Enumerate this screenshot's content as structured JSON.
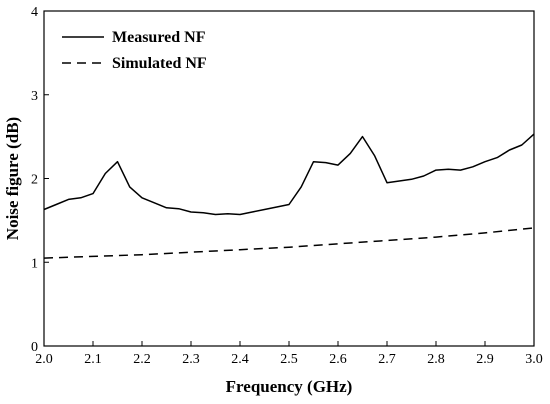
{
  "chart_data": {
    "type": "line",
    "xlabel": "Frequency (GHz)",
    "ylabel": "Noise figure (dB)",
    "xlim": [
      2.0,
      3.0
    ],
    "ylim": [
      0,
      4
    ],
    "xticks": [
      "2.0",
      "2.1",
      "2.2",
      "2.3",
      "2.4",
      "2.5",
      "2.6",
      "2.7",
      "2.8",
      "2.9",
      "3.0"
    ],
    "yticks": [
      "0",
      "1",
      "2",
      "3",
      "4"
    ],
    "grid": false,
    "legend_position": "top-left",
    "series": [
      {
        "name": "Measured NF",
        "style": "solid",
        "color": "#000000",
        "x": [
          2.0,
          2.025,
          2.05,
          2.075,
          2.1,
          2.125,
          2.15,
          2.175,
          2.2,
          2.225,
          2.25,
          2.275,
          2.3,
          2.325,
          2.35,
          2.375,
          2.4,
          2.425,
          2.45,
          2.475,
          2.5,
          2.525,
          2.55,
          2.575,
          2.6,
          2.625,
          2.65,
          2.675,
          2.7,
          2.725,
          2.75,
          2.775,
          2.8,
          2.825,
          2.85,
          2.875,
          2.9,
          2.925,
          2.95,
          2.975,
          3.0
        ],
        "y": [
          1.63,
          1.69,
          1.75,
          1.77,
          1.82,
          2.06,
          2.2,
          1.9,
          1.77,
          1.71,
          1.65,
          1.64,
          1.6,
          1.59,
          1.57,
          1.58,
          1.57,
          1.6,
          1.63,
          1.66,
          1.69,
          1.9,
          2.2,
          2.19,
          2.16,
          2.3,
          2.5,
          2.27,
          1.95,
          1.97,
          1.99,
          2.03,
          2.1,
          2.11,
          2.1,
          2.14,
          2.2,
          2.25,
          2.34,
          2.4,
          2.53
        ]
      },
      {
        "name": "Simulated NF",
        "style": "dashed",
        "color": "#000000",
        "x": [
          2.0,
          2.1,
          2.2,
          2.3,
          2.4,
          2.5,
          2.6,
          2.7,
          2.8,
          2.9,
          3.0
        ],
        "y": [
          1.05,
          1.07,
          1.09,
          1.12,
          1.15,
          1.18,
          1.22,
          1.26,
          1.3,
          1.35,
          1.41
        ]
      }
    ]
  }
}
